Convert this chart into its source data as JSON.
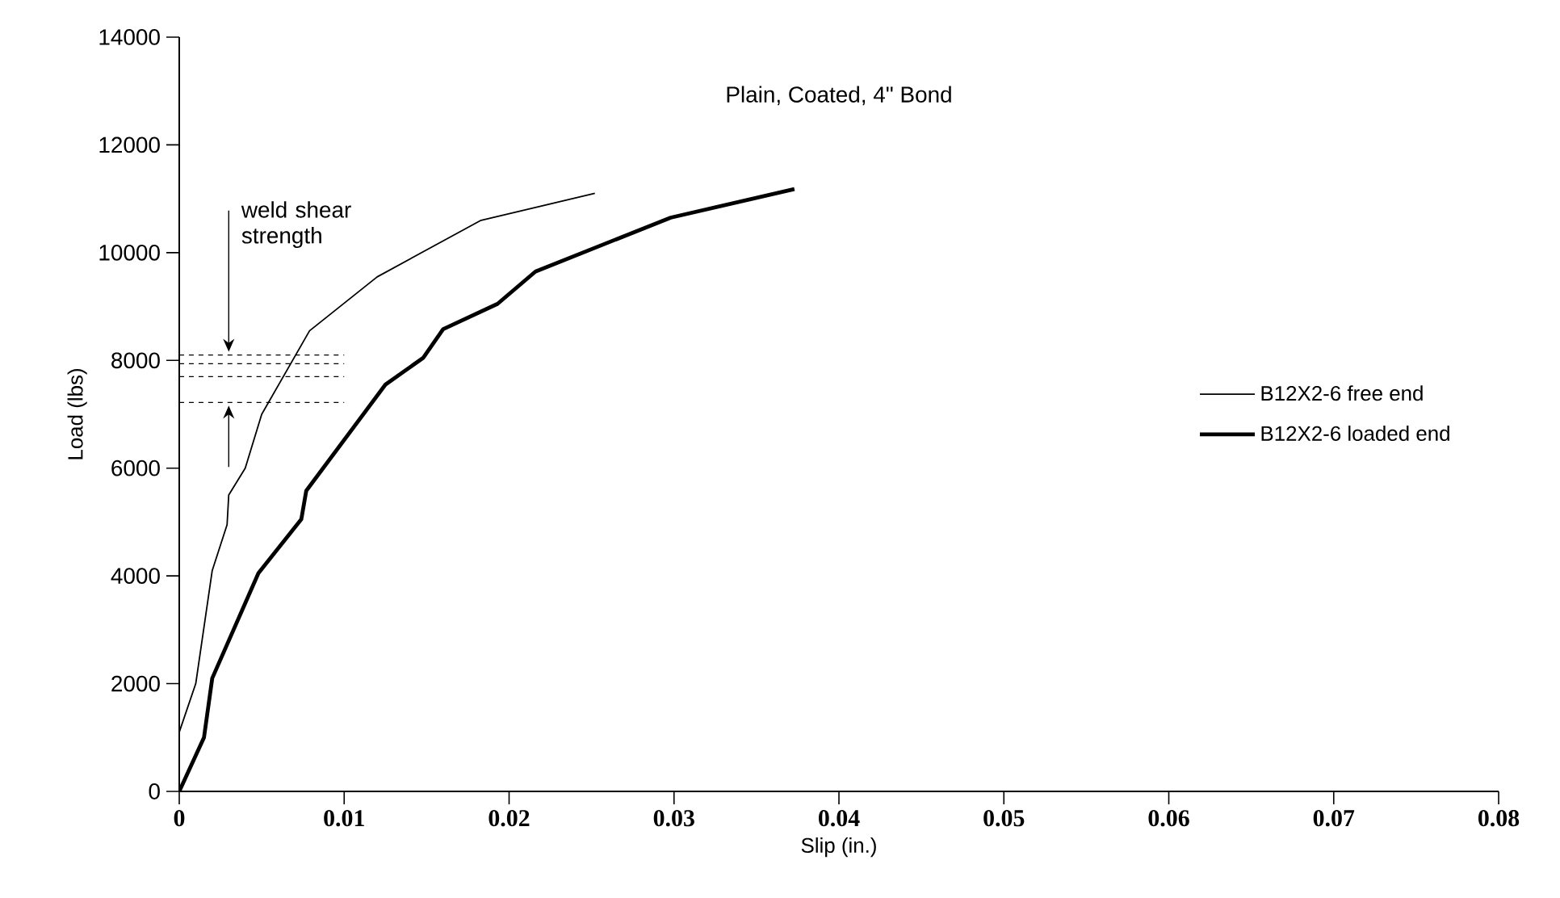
{
  "chart_data": {
    "type": "line",
    "title": "Plain, Coated, 4\" Bond",
    "xlabel": "Slip (in.)",
    "ylabel": "Load (lbs)",
    "xlim": [
      0,
      0.08
    ],
    "xticks": [
      0,
      0.01,
      0.02,
      0.03,
      0.04,
      0.05,
      0.06,
      0.07,
      0.08
    ],
    "ylim": [
      0,
      14000
    ],
    "yticks": [
      0,
      2000,
      4000,
      6000,
      8000,
      10000,
      12000,
      14000
    ],
    "grid": false,
    "legend": "right",
    "marker": "none",
    "annotations": [
      "weld shear strength"
    ],
    "series": [
      {
        "name": "B12X2-6 free end",
        "color": "#000000",
        "line_style": "solid",
        "x": [
          0,
          0.001,
          0.002,
          0.0029,
          0.003,
          0.004,
          0.005,
          0.0079,
          0.012,
          0.0183,
          0.0252
        ],
        "values": [
          1100,
          2000,
          4100,
          4950,
          5500,
          6000,
          7000,
          8550,
          9550,
          10600,
          11100
        ]
      },
      {
        "name": "B12X2-6 loaded end",
        "color": "#000000",
        "line_style": "solid",
        "x": [
          0,
          0.0015,
          0.002,
          0.0048,
          0.0074,
          0.0077,
          0.0125,
          0.0148,
          0.016,
          0.0193,
          0.0216,
          0.0298,
          0.0373
        ],
        "values": [
          0,
          1000,
          2100,
          4050,
          5050,
          5580,
          7550,
          8050,
          8580,
          9050,
          9650,
          10650,
          11180
        ]
      },
      {
        "color": "#000000",
        "line_style": "dashed",
        "x": [
          0,
          0.01
        ],
        "values": [
          8100,
          8100
        ]
      },
      {
        "color": "#000000",
        "line_style": "dashed",
        "x": [
          0,
          0.01
        ],
        "values": [
          7940,
          7940
        ]
      },
      {
        "color": "#000000",
        "line_style": "dashed",
        "x": [
          0,
          0.01
        ],
        "values": [
          7700,
          7700
        ]
      },
      {
        "color": "#000000",
        "line_style": "dashed",
        "x": [
          0,
          0.01
        ],
        "values": [
          7220,
          7220
        ]
      }
    ]
  }
}
